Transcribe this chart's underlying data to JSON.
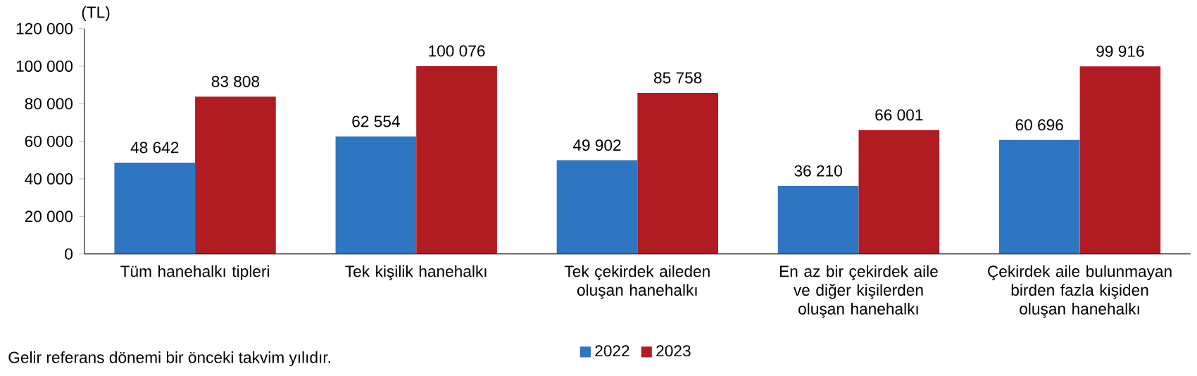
{
  "chart_data": {
    "type": "bar",
    "ylabel": "(TL)",
    "categories": [
      "Tüm hanehalkı tipleri",
      "Tek kişilik hanehalkı",
      "Tek çekirdek aileden oluşan hanehalkı",
      "En az bir çekirdek aile ve diğer kişilerden oluşan hanehalkı",
      "Çekirdek aile bulunmayan birden fazla kişiden oluşan hanehalkı"
    ],
    "series": [
      {
        "name": "2022",
        "color": "#2e75c2",
        "values": [
          48642,
          62554,
          49902,
          36210,
          60696
        ],
        "value_labels": [
          "48 642",
          "62 554",
          "49 902",
          "36 210",
          "60 696"
        ]
      },
      {
        "name": "2023",
        "color": "#b01c22",
        "values": [
          83808,
          100076,
          85758,
          66001,
          99916
        ],
        "value_labels": [
          "83 808",
          "100 076",
          "85 758",
          "66 001",
          "99 916"
        ]
      }
    ],
    "ylim": [
      0,
      120000
    ],
    "yticks": [
      0,
      {
        "value": 20000,
        "label": "20 000"
      },
      {
        "value": 40000,
        "label": "40 000"
      },
      {
        "value": 60000,
        "label": "60 000"
      },
      {
        "value": 80000,
        "label": "80 000"
      },
      {
        "value": 100000,
        "label": "100 000"
      },
      {
        "value": 120000,
        "label": "120 000"
      }
    ],
    "grid": false,
    "legend": "bottom",
    "annotations": [
      "Gelir referans dönemi bir önceki takvim yılıdır."
    ]
  }
}
